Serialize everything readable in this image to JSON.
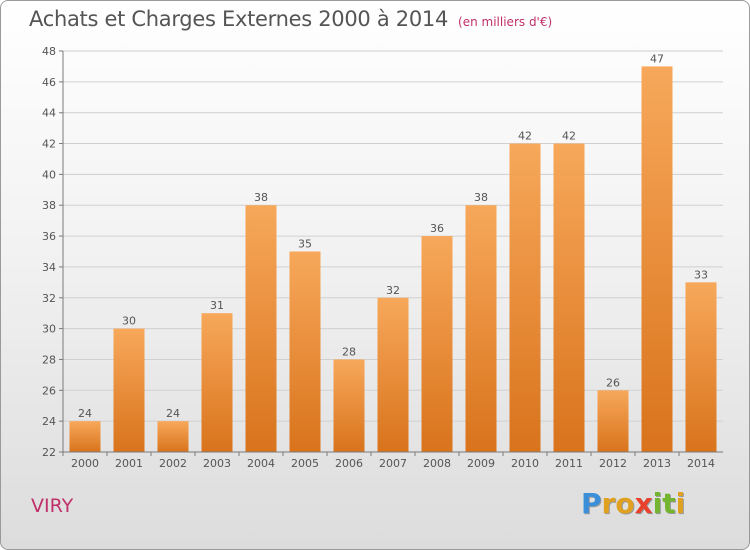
{
  "header": {
    "title": "Achats et Charges Externes 2000 à 2014",
    "unit": "(en milliers d'€)"
  },
  "footer": {
    "city": "VIRY",
    "logo_letters": [
      "P",
      "r",
      "o",
      "x",
      "i",
      "t",
      "i"
    ]
  },
  "colors": {
    "bar_light": "#f7a85a",
    "bar_dark": "#d9731c",
    "axis": "#7a7a7a",
    "grid": "#d0d0d0",
    "city": "#c0306a"
  },
  "chart_data": {
    "type": "bar",
    "categories": [
      "2000",
      "2001",
      "2002",
      "2003",
      "2004",
      "2005",
      "2006",
      "2007",
      "2008",
      "2009",
      "2010",
      "2011",
      "2012",
      "2013",
      "2014"
    ],
    "values": [
      24,
      30,
      24,
      31,
      38,
      35,
      28,
      32,
      36,
      38,
      42,
      42,
      26,
      47,
      33
    ],
    "data_labels": [
      "24",
      "30",
      "24",
      "31",
      "38",
      "35",
      "28",
      "32",
      "36",
      "38",
      "42",
      "42",
      "26",
      "47",
      "33"
    ],
    "title": "Achats et Charges Externes 2000 à 2014",
    "ylim": [
      22,
      48
    ],
    "yticks": [
      22,
      24,
      26,
      28,
      30,
      32,
      34,
      36,
      38,
      40,
      42,
      44,
      46,
      48
    ],
    "ytick_labels": [
      "22",
      "24",
      "26",
      "28",
      "30",
      "32",
      "34",
      "36",
      "38",
      "40",
      "42",
      "44",
      "46",
      "48"
    ],
    "grid": true
  }
}
